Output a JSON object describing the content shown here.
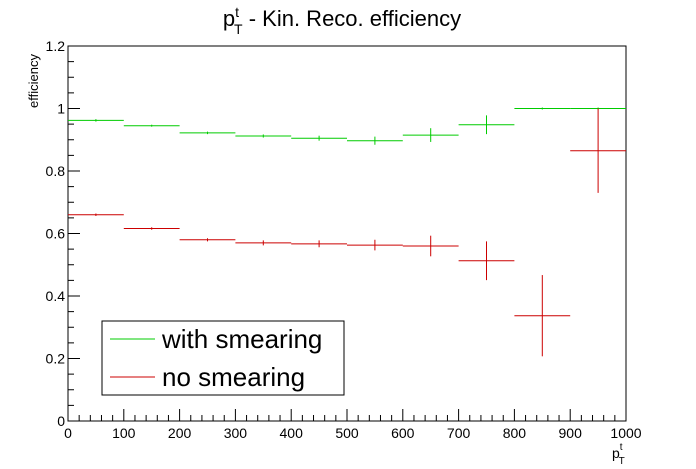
{
  "chart_data": {
    "type": "scatter",
    "title": {
      "main": "p",
      "sup": "t",
      "sub": "T",
      "rest": " - Kin. Reco. efficiency"
    },
    "xlabel": {
      "main": "p",
      "sup": "t",
      "sub": "T"
    },
    "ylabel": "efficiency",
    "xlim": [
      0,
      1000
    ],
    "ylim": [
      0,
      1.2
    ],
    "x_ticks": [
      0,
      100,
      200,
      300,
      400,
      500,
      600,
      700,
      800,
      900,
      1000
    ],
    "x_tick_labels": [
      "0",
      "100",
      "200",
      "300",
      "400",
      "500",
      "600",
      "700",
      "800",
      "900",
      "1000"
    ],
    "y_ticks": [
      0,
      0.2,
      0.4,
      0.6,
      0.8,
      1,
      1.2
    ],
    "y_tick_labels": [
      "0",
      "0.2",
      "0.4",
      "0.6",
      "0.8",
      "1",
      "1.2"
    ],
    "grid": false,
    "legend": {
      "placement": "bottom-left"
    },
    "series": [
      {
        "name": "with smearing",
        "color": "#00cc00",
        "points": [
          {
            "x0": 0,
            "x1": 100,
            "y": 0.962,
            "err": 0.004
          },
          {
            "x0": 100,
            "x1": 200,
            "y": 0.945,
            "err": 0.003
          },
          {
            "x0": 200,
            "x1": 300,
            "y": 0.922,
            "err": 0.004
          },
          {
            "x0": 300,
            "x1": 400,
            "y": 0.912,
            "err": 0.005
          },
          {
            "x0": 400,
            "x1": 500,
            "y": 0.905,
            "err": 0.008
          },
          {
            "x0": 500,
            "x1": 600,
            "y": 0.897,
            "err": 0.013
          },
          {
            "x0": 600,
            "x1": 700,
            "y": 0.915,
            "err": 0.022
          },
          {
            "x0": 700,
            "x1": 800,
            "y": 0.948,
            "err": 0.03
          },
          {
            "x0": 800,
            "x1": 900,
            "y": 1.0,
            "err": 0.0
          },
          {
            "x0": 900,
            "x1": 1000,
            "y": 1.0,
            "err": 0.0
          }
        ]
      },
      {
        "name": "no smearing",
        "color": "#cc0000",
        "points": [
          {
            "x0": 0,
            "x1": 100,
            "y": 0.66,
            "err": 0.004
          },
          {
            "x0": 100,
            "x1": 200,
            "y": 0.616,
            "err": 0.004
          },
          {
            "x0": 200,
            "x1": 300,
            "y": 0.58,
            "err": 0.005
          },
          {
            "x0": 300,
            "x1": 400,
            "y": 0.57,
            "err": 0.008
          },
          {
            "x0": 400,
            "x1": 500,
            "y": 0.567,
            "err": 0.011
          },
          {
            "x0": 500,
            "x1": 600,
            "y": 0.563,
            "err": 0.017
          },
          {
            "x0": 600,
            "x1": 700,
            "y": 0.56,
            "err": 0.033
          },
          {
            "x0": 700,
            "x1": 800,
            "y": 0.513,
            "err": 0.062
          },
          {
            "x0": 800,
            "x1": 900,
            "y": 0.337,
            "err": 0.13
          },
          {
            "x0": 900,
            "x1": 1000,
            "y": 0.865,
            "err": 0.135
          }
        ]
      }
    ]
  }
}
